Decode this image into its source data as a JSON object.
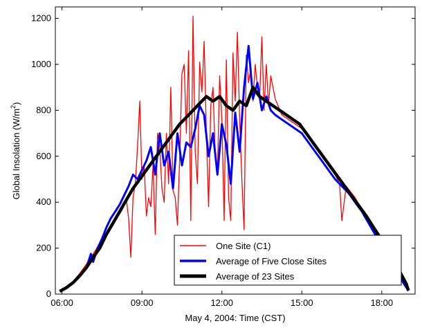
{
  "chart_data": {
    "type": "line",
    "title": "",
    "xlabel": "May 4, 2004: Time (CST)",
    "ylabel_main": "Global Insolation (W/m",
    "ylabel_sup": "2",
    "ylabel_close": ")",
    "xlim": [
      "05:45",
      "19:15"
    ],
    "ylim": [
      0,
      1250
    ],
    "xticks": [
      {
        "value": "06:00",
        "label": "06:00"
      },
      {
        "value": "09:00",
        "label": "09:00"
      },
      {
        "value": "12:00",
        "label": "12:00"
      },
      {
        "value": "15:00",
        "label": "15:00"
      },
      {
        "value": "18:00",
        "label": "18:00"
      }
    ],
    "yticks": [
      0,
      200,
      400,
      600,
      800,
      1000,
      1200
    ],
    "grid": false,
    "legend_position": "bottom-right",
    "series": [
      {
        "name": "One Site (C1)",
        "color": "#ff0000",
        "points": [
          [
            "05:55",
            15
          ],
          [
            "06:10",
            30
          ],
          [
            "06:25",
            55
          ],
          [
            "06:40",
            90
          ],
          [
            "06:55",
            130
          ],
          [
            "07:10",
            175
          ],
          [
            "07:25",
            220
          ],
          [
            "07:40",
            260
          ],
          [
            "07:55",
            300
          ],
          [
            "08:05",
            335
          ],
          [
            "08:15",
            365
          ],
          [
            "08:25",
            410
          ],
          [
            "08:30",
            330
          ],
          [
            "08:35",
            160
          ],
          [
            "08:40",
            420
          ],
          [
            "08:45",
            480
          ],
          [
            "08:50",
            640
          ],
          [
            "08:55",
            840
          ],
          [
            "09:00",
            500
          ],
          [
            "09:05",
            560
          ],
          [
            "09:10",
            340
          ],
          [
            "09:15",
            420
          ],
          [
            "09:20",
            380
          ],
          [
            "09:25",
            560
          ],
          [
            "09:30",
            260
          ],
          [
            "09:35",
            700
          ],
          [
            "09:40",
            640
          ],
          [
            "09:45",
            460
          ],
          [
            "09:50",
            400
          ],
          [
            "09:55",
            700
          ],
          [
            "10:00",
            480
          ],
          [
            "10:05",
            900
          ],
          [
            "10:10",
            450
          ],
          [
            "10:15",
            420
          ],
          [
            "10:20",
            300
          ],
          [
            "10:25",
            600
          ],
          [
            "10:30",
            960
          ],
          [
            "10:35",
            1000
          ],
          [
            "10:40",
            700
          ],
          [
            "10:45",
            1060
          ],
          [
            "10:50",
            320
          ],
          [
            "10:55",
            1210
          ],
          [
            "11:00",
            620
          ],
          [
            "11:05",
            480
          ],
          [
            "11:10",
            1010
          ],
          [
            "11:15",
            880
          ],
          [
            "11:20",
            1100
          ],
          [
            "11:25",
            700
          ],
          [
            "11:30",
            380
          ],
          [
            "11:35",
            820
          ],
          [
            "11:40",
            900
          ],
          [
            "11:45",
            600
          ],
          [
            "11:50",
            520
          ],
          [
            "11:55",
            950
          ],
          [
            "12:00",
            760
          ],
          [
            "12:05",
            320
          ],
          [
            "12:10",
            1020
          ],
          [
            "12:15",
            420
          ],
          [
            "12:20",
            320
          ],
          [
            "12:25",
            1050
          ],
          [
            "12:30",
            840
          ],
          [
            "12:35",
            1140
          ],
          [
            "12:40",
            760
          ],
          [
            "12:45",
            500
          ],
          [
            "12:50",
            280
          ],
          [
            "12:55",
            1040
          ],
          [
            "13:00",
            920
          ],
          [
            "13:05",
            980
          ],
          [
            "13:10",
            840
          ],
          [
            "13:15",
            1000
          ],
          [
            "13:20",
            900
          ],
          [
            "13:25",
            850
          ],
          [
            "13:30",
            1120
          ],
          [
            "13:35",
            800
          ],
          [
            "13:40",
            1000
          ],
          [
            "13:45",
            820
          ],
          [
            "13:50",
            950
          ],
          [
            "14:00",
            850
          ],
          [
            "14:15",
            780
          ],
          [
            "14:30",
            760
          ],
          [
            "14:45",
            740
          ],
          [
            "15:00",
            720
          ],
          [
            "15:15",
            680
          ],
          [
            "15:30",
            640
          ],
          [
            "15:45",
            600
          ],
          [
            "16:00",
            560
          ],
          [
            "16:15",
            520
          ],
          [
            "16:25",
            480
          ],
          [
            "16:30",
            320
          ],
          [
            "16:40",
            470
          ],
          [
            "17:00",
            420
          ],
          [
            "17:15",
            370
          ],
          [
            "17:30",
            320
          ],
          [
            "17:45",
            270
          ],
          [
            "18:00",
            215
          ],
          [
            "18:15",
            165
          ],
          [
            "18:30",
            115
          ],
          [
            "18:45",
            60
          ],
          [
            "19:00",
            20
          ]
        ]
      },
      {
        "name": "Average of Five Close Sites",
        "color": "#0000ff",
        "points": [
          [
            "05:55",
            12
          ],
          [
            "06:10",
            28
          ],
          [
            "06:25",
            50
          ],
          [
            "06:40",
            80
          ],
          [
            "06:55",
            115
          ],
          [
            "07:05",
            175
          ],
          [
            "07:10",
            140
          ],
          [
            "07:20",
            200
          ],
          [
            "07:30",
            240
          ],
          [
            "07:40",
            290
          ],
          [
            "07:50",
            330
          ],
          [
            "08:00",
            360
          ],
          [
            "08:10",
            390
          ],
          [
            "08:20",
            430
          ],
          [
            "08:30",
            470
          ],
          [
            "08:40",
            520
          ],
          [
            "08:50",
            500
          ],
          [
            "09:00",
            540
          ],
          [
            "09:10",
            580
          ],
          [
            "09:20",
            640
          ],
          [
            "09:30",
            520
          ],
          [
            "09:40",
            700
          ],
          [
            "09:50",
            560
          ],
          [
            "10:00",
            620
          ],
          [
            "10:10",
            460
          ],
          [
            "10:20",
            700
          ],
          [
            "10:30",
            560
          ],
          [
            "10:40",
            660
          ],
          [
            "10:50",
            640
          ],
          [
            "11:00",
            720
          ],
          [
            "11:10",
            820
          ],
          [
            "11:20",
            780
          ],
          [
            "11:30",
            600
          ],
          [
            "11:40",
            700
          ],
          [
            "11:50",
            520
          ],
          [
            "12:00",
            740
          ],
          [
            "12:10",
            650
          ],
          [
            "12:20",
            480
          ],
          [
            "12:30",
            790
          ],
          [
            "12:40",
            620
          ],
          [
            "12:50",
            900
          ],
          [
            "13:00",
            1080
          ],
          [
            "13:10",
            850
          ],
          [
            "13:20",
            920
          ],
          [
            "13:30",
            800
          ],
          [
            "13:40",
            860
          ],
          [
            "13:50",
            800
          ],
          [
            "14:00",
            780
          ],
          [
            "14:15",
            760
          ],
          [
            "14:30",
            740
          ],
          [
            "14:45",
            720
          ],
          [
            "15:00",
            700
          ],
          [
            "15:15",
            660
          ],
          [
            "15:30",
            620
          ],
          [
            "15:45",
            580
          ],
          [
            "16:00",
            540
          ],
          [
            "16:15",
            500
          ],
          [
            "16:30",
            470
          ],
          [
            "16:45",
            440
          ],
          [
            "17:00",
            400
          ],
          [
            "17:15",
            360
          ],
          [
            "17:30",
            310
          ],
          [
            "17:45",
            260
          ],
          [
            "18:00",
            210
          ],
          [
            "18:15",
            160
          ],
          [
            "18:30",
            110
          ],
          [
            "18:45",
            60
          ],
          [
            "19:00",
            15
          ]
        ]
      },
      {
        "name": "Average of 23 Sites",
        "color": "#000000",
        "points": [
          [
            "05:55",
            12
          ],
          [
            "06:10",
            28
          ],
          [
            "06:25",
            50
          ],
          [
            "06:40",
            80
          ],
          [
            "06:55",
            115
          ],
          [
            "07:10",
            160
          ],
          [
            "07:25",
            200
          ],
          [
            "07:40",
            260
          ],
          [
            "07:55",
            310
          ],
          [
            "08:10",
            360
          ],
          [
            "08:25",
            410
          ],
          [
            "08:40",
            460
          ],
          [
            "08:55",
            500
          ],
          [
            "09:10",
            540
          ],
          [
            "09:25",
            580
          ],
          [
            "09:40",
            620
          ],
          [
            "09:55",
            660
          ],
          [
            "10:10",
            700
          ],
          [
            "10:25",
            740
          ],
          [
            "10:40",
            770
          ],
          [
            "10:55",
            800
          ],
          [
            "11:10",
            830
          ],
          [
            "11:25",
            860
          ],
          [
            "11:40",
            840
          ],
          [
            "11:55",
            860
          ],
          [
            "12:10",
            820
          ],
          [
            "12:25",
            800
          ],
          [
            "12:40",
            840
          ],
          [
            "12:55",
            820
          ],
          [
            "13:10",
            900
          ],
          [
            "13:25",
            860
          ],
          [
            "13:40",
            840
          ],
          [
            "13:55",
            820
          ],
          [
            "14:10",
            800
          ],
          [
            "14:25",
            780
          ],
          [
            "14:40",
            760
          ],
          [
            "14:55",
            740
          ],
          [
            "15:10",
            700
          ],
          [
            "15:25",
            660
          ],
          [
            "15:40",
            620
          ],
          [
            "15:55",
            580
          ],
          [
            "16:10",
            540
          ],
          [
            "16:25",
            500
          ],
          [
            "16:40",
            460
          ],
          [
            "16:55",
            420
          ],
          [
            "17:10",
            380
          ],
          [
            "17:25",
            340
          ],
          [
            "17:40",
            295
          ],
          [
            "17:55",
            250
          ],
          [
            "18:10",
            200
          ],
          [
            "18:25",
            150
          ],
          [
            "18:40",
            100
          ],
          [
            "18:55",
            45
          ],
          [
            "19:00",
            15
          ]
        ]
      }
    ]
  }
}
